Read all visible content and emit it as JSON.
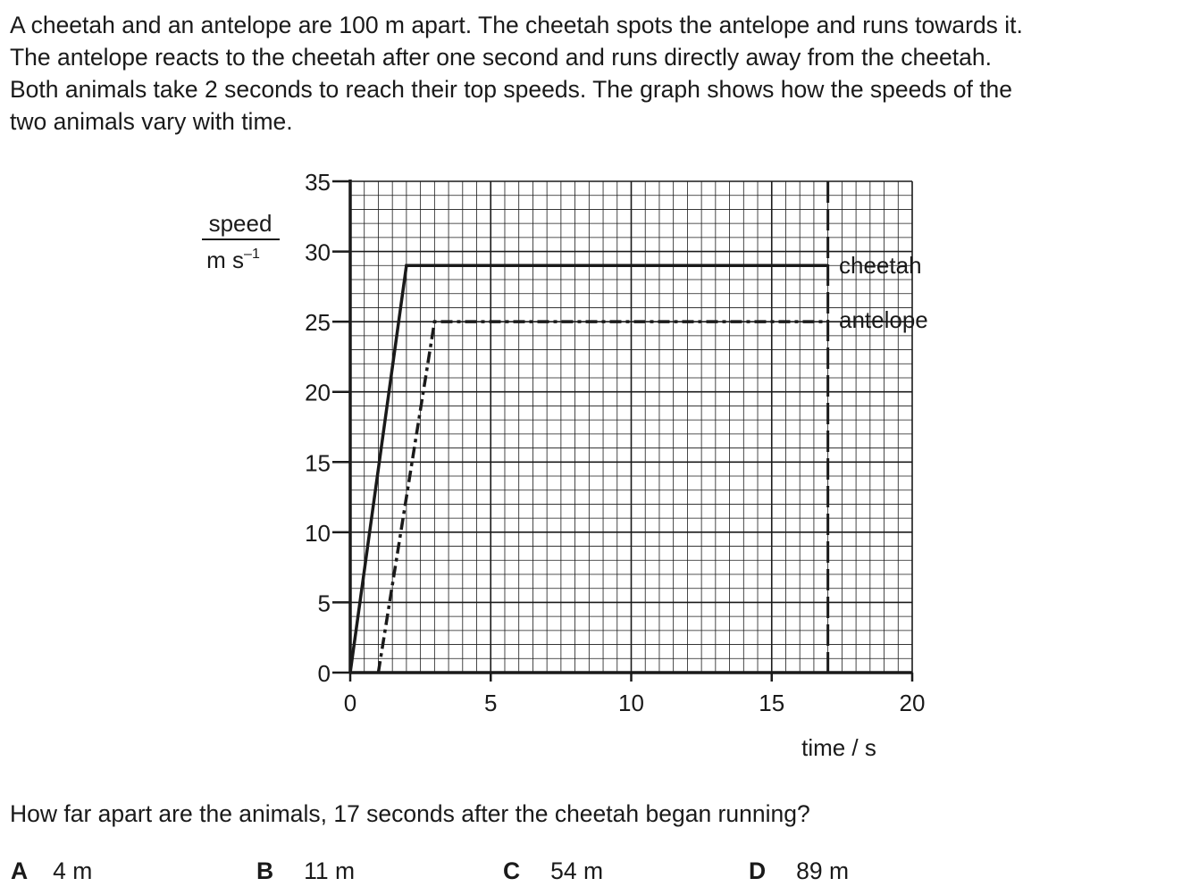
{
  "question": {
    "line1": "A cheetah and an antelope are 100 m apart. The cheetah spots the antelope and runs towards it.",
    "line2": "The antelope reacts to the cheetah after one second and runs directly away from the cheetah.",
    "line3": "Both animals take 2 seconds to reach their top speeds. The graph shows how the speeds of the",
    "line4": "two animals vary with time."
  },
  "chart_data": {
    "type": "line",
    "title": "",
    "xlabel": "time / s",
    "ylabel_numerator": "speed",
    "ylabel_denominator": "m s",
    "ylabel_denominator_exponent": "–1",
    "xlim": [
      0,
      20
    ],
    "ylim": [
      0,
      35
    ],
    "xticks": [
      0,
      5,
      10,
      15,
      20
    ],
    "yticks": [
      0,
      5,
      10,
      15,
      20,
      25,
      30,
      35
    ],
    "x_minor_step": 0.5,
    "y_minor_step": 1,
    "grid": true,
    "series": [
      {
        "name": "cheetah",
        "style": "solid",
        "x": [
          0,
          2,
          17
        ],
        "y": [
          0,
          29,
          29
        ]
      },
      {
        "name": "antelope",
        "style": "dash-dot",
        "x": [
          1,
          3,
          17
        ],
        "y": [
          0,
          25,
          25
        ]
      }
    ],
    "reference_line": {
      "x": 17,
      "style": "dashed"
    }
  },
  "prompt": "How far apart are the animals, 17 seconds after the cheetah began running?",
  "options": [
    {
      "letter": "A",
      "answer": "4 m"
    },
    {
      "letter": "B",
      "answer": "11 m"
    },
    {
      "letter": "C",
      "answer": "54 m"
    },
    {
      "letter": "D",
      "answer": "89 m"
    }
  ]
}
